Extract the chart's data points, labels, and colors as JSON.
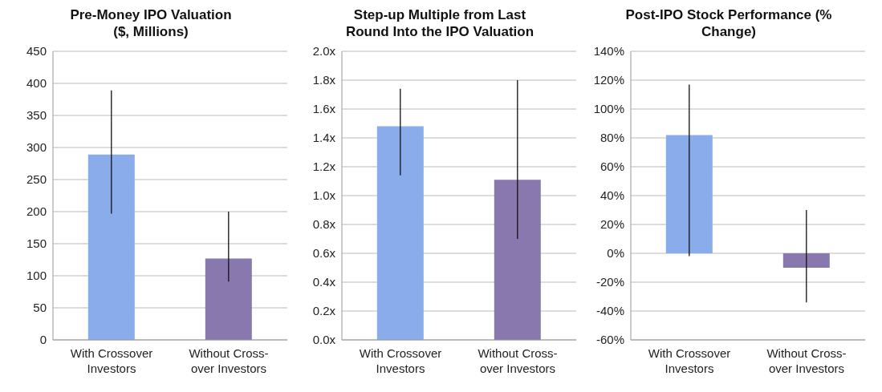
{
  "chart_data": [
    {
      "type": "bar",
      "title": "Pre-Money IPO Valuation ($, Millions)",
      "categories": [
        "With Crossover Investors",
        "Without Cross-over Investors"
      ],
      "values": [
        289,
        127
      ],
      "colors": [
        "#8aacea",
        "#8878ad"
      ],
      "errors": [
        [
          197,
          389
        ],
        [
          91,
          200
        ]
      ],
      "ylim": [
        0,
        450
      ],
      "yticks": [
        0,
        50,
        100,
        150,
        200,
        250,
        300,
        350,
        400,
        450
      ],
      "grid": "y"
    },
    {
      "type": "bar",
      "title": "Step-up Multiple from Last Round Into the IPO Valuation",
      "categories": [
        "With Crossover Investors",
        "Without Cross-over Investors"
      ],
      "values": [
        1.48,
        1.11
      ],
      "colors": [
        "#8aacea",
        "#8878ad"
      ],
      "errors": [
        [
          1.14,
          1.74
        ],
        [
          0.7,
          1.8
        ]
      ],
      "ylim": [
        0,
        2
      ],
      "yticks": [
        {
          "value": 0,
          "label": "0.0x"
        },
        {
          "value": 0.2,
          "label": "0.2x"
        },
        {
          "value": 0.4,
          "label": "0.4x"
        },
        {
          "value": 0.6,
          "label": "0.6x"
        },
        {
          "value": 0.8,
          "label": "0.8x"
        },
        {
          "value": 1,
          "label": "1.0x"
        },
        {
          "value": 1.2,
          "label": "1.2x"
        },
        {
          "value": 1.4,
          "label": "1.4x"
        },
        {
          "value": 1.6,
          "label": "1.6x"
        },
        {
          "value": 1.8,
          "label": "1.8x"
        },
        {
          "value": 2,
          "label": "2.0x"
        }
      ],
      "grid": "y"
    },
    {
      "type": "bar",
      "title": "Post-IPO Stock Performance (% Change)",
      "categories": [
        "With Crossover Investors",
        "Without Cross-over Investors"
      ],
      "values": [
        82,
        -10
      ],
      "colors": [
        "#8aacea",
        "#8878ad"
      ],
      "errors": [
        [
          -2,
          117
        ],
        [
          -34,
          30
        ]
      ],
      "ylim": [
        -60,
        140
      ],
      "yticks": [
        {
          "value": -60,
          "label": "-60%"
        },
        {
          "value": -40,
          "label": "-40%"
        },
        {
          "value": -20,
          "label": "-20%"
        },
        {
          "value": 0,
          "label": "0%"
        },
        {
          "value": 20,
          "label": "20%"
        },
        {
          "value": 40,
          "label": "40%"
        },
        {
          "value": 60,
          "label": "60%"
        },
        {
          "value": 80,
          "label": "80%"
        },
        {
          "value": 100,
          "label": "100%"
        },
        {
          "value": 120,
          "label": "120%"
        },
        {
          "value": 140,
          "label": "140%"
        }
      ],
      "grid": "y"
    }
  ]
}
